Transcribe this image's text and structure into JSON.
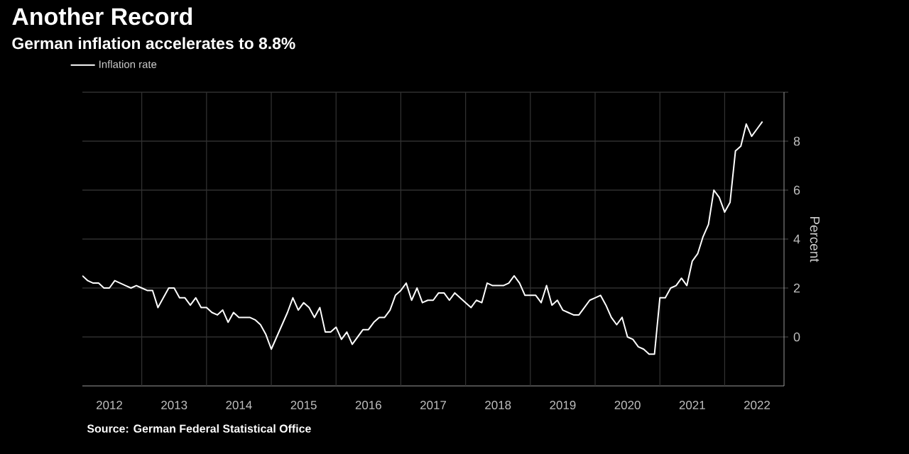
{
  "chart_data": {
    "type": "line",
    "title": "Another Record",
    "subtitle": "German inflation accelerates to 8.8%",
    "ylabel": "Percent",
    "annotations": [
      "Source: German Federal Statistical Office"
    ],
    "x": [
      "2012-02",
      "2012-03",
      "2012-04",
      "2012-05",
      "2012-06",
      "2012-07",
      "2012-08",
      "2012-09",
      "2012-10",
      "2012-11",
      "2012-12",
      "2013-01",
      "2013-02",
      "2013-03",
      "2013-04",
      "2013-05",
      "2013-06",
      "2013-07",
      "2013-08",
      "2013-09",
      "2013-10",
      "2013-11",
      "2013-12",
      "2014-01",
      "2014-02",
      "2014-03",
      "2014-04",
      "2014-05",
      "2014-06",
      "2014-07",
      "2014-08",
      "2014-09",
      "2014-10",
      "2014-11",
      "2014-12",
      "2015-01",
      "2015-02",
      "2015-03",
      "2015-04",
      "2015-05",
      "2015-06",
      "2015-07",
      "2015-08",
      "2015-09",
      "2015-10",
      "2015-11",
      "2015-12",
      "2016-01",
      "2016-02",
      "2016-03",
      "2016-04",
      "2016-05",
      "2016-06",
      "2016-07",
      "2016-08",
      "2016-09",
      "2016-10",
      "2016-11",
      "2016-12",
      "2017-01",
      "2017-02",
      "2017-03",
      "2017-04",
      "2017-05",
      "2017-06",
      "2017-07",
      "2017-08",
      "2017-09",
      "2017-10",
      "2017-11",
      "2017-12",
      "2018-01",
      "2018-02",
      "2018-03",
      "2018-04",
      "2018-05",
      "2018-06",
      "2018-07",
      "2018-08",
      "2018-09",
      "2018-10",
      "2018-11",
      "2018-12",
      "2019-01",
      "2019-02",
      "2019-03",
      "2019-04",
      "2019-05",
      "2019-06",
      "2019-07",
      "2019-08",
      "2019-09",
      "2019-10",
      "2019-11",
      "2019-12",
      "2020-01",
      "2020-02",
      "2020-03",
      "2020-04",
      "2020-05",
      "2020-06",
      "2020-07",
      "2020-08",
      "2020-09",
      "2020-10",
      "2020-11",
      "2020-12",
      "2021-01",
      "2021-02",
      "2021-03",
      "2021-04",
      "2021-05",
      "2021-06",
      "2021-07",
      "2021-08",
      "2021-09",
      "2021-10",
      "2021-11",
      "2021-12",
      "2022-01",
      "2022-02",
      "2022-03",
      "2022-04",
      "2022-05",
      "2022-06",
      "2022-07",
      "2022-08"
    ],
    "series": [
      {
        "name": "Inflation rate",
        "color": "#ffffff",
        "values": [
          2.5,
          2.3,
          2.2,
          2.2,
          2.0,
          2.0,
          2.3,
          2.2,
          2.1,
          2.0,
          2.1,
          2.0,
          1.9,
          1.9,
          1.2,
          1.6,
          2.0,
          2.0,
          1.6,
          1.6,
          1.3,
          1.6,
          1.2,
          1.2,
          1.0,
          0.9,
          1.1,
          0.6,
          1.0,
          0.8,
          0.8,
          0.8,
          0.7,
          0.5,
          0.1,
          -0.5,
          0.0,
          0.5,
          1.0,
          1.6,
          1.1,
          1.4,
          1.2,
          0.8,
          1.2,
          0.2,
          0.2,
          0.4,
          -0.1,
          0.2,
          -0.3,
          0.0,
          0.3,
          0.3,
          0.6,
          0.8,
          0.8,
          1.1,
          1.7,
          1.9,
          2.2,
          1.5,
          2.0,
          1.4,
          1.5,
          1.5,
          1.8,
          1.8,
          1.5,
          1.8,
          1.6,
          1.4,
          1.2,
          1.5,
          1.4,
          2.2,
          2.1,
          2.1,
          2.1,
          2.2,
          2.5,
          2.2,
          1.7,
          1.7,
          1.7,
          1.4,
          2.1,
          1.3,
          1.5,
          1.1,
          1.0,
          0.9,
          0.9,
          1.2,
          1.5,
          1.6,
          1.7,
          1.3,
          0.8,
          0.5,
          0.8,
          0.0,
          -0.1,
          -0.4,
          -0.5,
          -0.7,
          -0.7,
          1.6,
          1.6,
          2.0,
          2.1,
          2.4,
          2.1,
          3.1,
          3.4,
          4.1,
          4.6,
          6.0,
          5.7,
          5.1,
          5.5,
          7.6,
          7.8,
          8.7,
          8.2,
          8.5,
          8.8
        ]
      }
    ],
    "xlim": [
      "2012-02",
      "2022-12"
    ],
    "xticks": [
      {
        "value": "2012-07",
        "label": "2012"
      },
      {
        "value": "2013-07",
        "label": "2013"
      },
      {
        "value": "2014-07",
        "label": "2014"
      },
      {
        "value": "2015-07",
        "label": "2015"
      },
      {
        "value": "2016-07",
        "label": "2016"
      },
      {
        "value": "2017-07",
        "label": "2017"
      },
      {
        "value": "2018-07",
        "label": "2018"
      },
      {
        "value": "2019-07",
        "label": "2019"
      },
      {
        "value": "2020-07",
        "label": "2020"
      },
      {
        "value": "2021-07",
        "label": "2021"
      },
      {
        "value": "2022-07",
        "label": "2022"
      },
      {
        "value": "2013",
        "label": null
      },
      {
        "value": "2014",
        "label": null
      },
      {
        "value": "2015",
        "label": null
      },
      {
        "value": "2016",
        "label": null
      },
      {
        "value": "2017",
        "label": null
      },
      {
        "value": "2018",
        "label": null
      },
      {
        "value": "2019",
        "label": null
      },
      {
        "value": "2020",
        "label": null
      },
      {
        "value": "2021",
        "label": null
      },
      {
        "value": "2022",
        "label": null
      }
    ],
    "ylim": [
      -2,
      10
    ],
    "yticks": [
      0,
      2,
      4,
      6,
      8,
      {
        "value": 10,
        "label": null
      }
    ],
    "grid": true,
    "legend": "top left"
  }
}
